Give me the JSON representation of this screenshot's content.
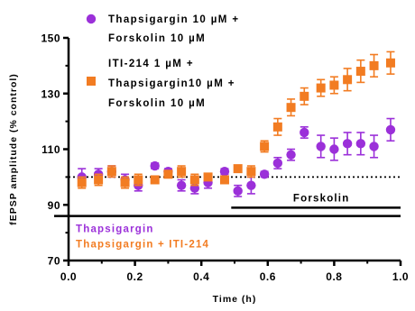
{
  "colors": {
    "purple": "#9B30D9",
    "orange": "#F27C22",
    "axis": "#000000"
  },
  "chart_data": {
    "type": "scatter",
    "xlabel": "Time (h)",
    "ylabel": "fEPSP amplitude (% control)",
    "xlim": [
      0.0,
      1.0
    ],
    "ylim": [
      70,
      150
    ],
    "xticks": [
      "0.0",
      "0.2",
      "0.4",
      "0.6",
      "0.8",
      "1.0"
    ],
    "yticks": [
      "70",
      "90",
      "110",
      "130",
      "150"
    ],
    "baseline": 100,
    "legend": [
      {
        "series": 0,
        "marker": "circle",
        "color": "#9B30D9",
        "lines": [
          "Thapsigargin 10 µM +",
          "Forskolin 10 µM"
        ]
      },
      {
        "series": 1,
        "marker": "square",
        "color": "#F27C22",
        "lines": [
          "ITI-214 1 µM +",
          "Thapsigargin10 µM +",
          "Forskolin 10 µM"
        ]
      }
    ],
    "annotations": {
      "forskolin": {
        "label": "Forskolin",
        "x_start": 0.49,
        "x_end": 1.0,
        "y": 89
      },
      "thapsigargin": {
        "label": "Thapsigargin",
        "label_color": "#9B30D9",
        "x_start": 0.0,
        "x_end": 1.0,
        "y": 86
      },
      "thapsigargin_iti": {
        "label": "Thapsigargin + ITI-214",
        "label_color": "#F27C22"
      }
    },
    "series": [
      {
        "marker": "circle",
        "color": "#9B30D9",
        "points": [
          {
            "x": 0.04,
            "y": 100,
            "err": 3
          },
          {
            "x": 0.09,
            "y": 101,
            "err": 2
          },
          {
            "x": 0.13,
            "y": 102,
            "err": 2
          },
          {
            "x": 0.17,
            "y": 99,
            "err": 2
          },
          {
            "x": 0.21,
            "y": 97,
            "err": 2
          },
          {
            "x": 0.26,
            "y": 104,
            "err": 1
          },
          {
            "x": 0.3,
            "y": 102,
            "err": 1
          },
          {
            "x": 0.34,
            "y": 97,
            "err": 2
          },
          {
            "x": 0.38,
            "y": 96,
            "err": 2
          },
          {
            "x": 0.42,
            "y": 98,
            "err": 2
          },
          {
            "x": 0.47,
            "y": 102,
            "err": 1
          },
          {
            "x": 0.51,
            "y": 95,
            "err": 2
          },
          {
            "x": 0.55,
            "y": 97,
            "err": 3
          },
          {
            "x": 0.59,
            "y": 101,
            "err": 1
          },
          {
            "x": 0.63,
            "y": 105,
            "err": 2
          },
          {
            "x": 0.67,
            "y": 108,
            "err": 2
          },
          {
            "x": 0.71,
            "y": 116,
            "err": 2
          },
          {
            "x": 0.76,
            "y": 111,
            "err": 4
          },
          {
            "x": 0.8,
            "y": 110,
            "err": 4
          },
          {
            "x": 0.84,
            "y": 112,
            "err": 4
          },
          {
            "x": 0.88,
            "y": 112,
            "err": 4
          },
          {
            "x": 0.92,
            "y": 111,
            "err": 4
          },
          {
            "x": 0.97,
            "y": 117,
            "err": 4
          }
        ]
      },
      {
        "marker": "square",
        "color": "#F27C22",
        "points": [
          {
            "x": 0.04,
            "y": 98,
            "err": 2
          },
          {
            "x": 0.09,
            "y": 99,
            "err": 2
          },
          {
            "x": 0.13,
            "y": 102,
            "err": 2
          },
          {
            "x": 0.17,
            "y": 98,
            "err": 2
          },
          {
            "x": 0.21,
            "y": 99,
            "err": 2
          },
          {
            "x": 0.26,
            "y": 99,
            "err": 1
          },
          {
            "x": 0.3,
            "y": 101,
            "err": 1
          },
          {
            "x": 0.34,
            "y": 102,
            "err": 2
          },
          {
            "x": 0.38,
            "y": 99,
            "err": 2
          },
          {
            "x": 0.42,
            "y": 100,
            "err": 1
          },
          {
            "x": 0.47,
            "y": 99,
            "err": 1
          },
          {
            "x": 0.51,
            "y": 103,
            "err": 1
          },
          {
            "x": 0.55,
            "y": 102,
            "err": 2
          },
          {
            "x": 0.59,
            "y": 111,
            "err": 2
          },
          {
            "x": 0.63,
            "y": 118,
            "err": 3
          },
          {
            "x": 0.67,
            "y": 125,
            "err": 3
          },
          {
            "x": 0.71,
            "y": 129,
            "err": 3
          },
          {
            "x": 0.76,
            "y": 132,
            "err": 3
          },
          {
            "x": 0.8,
            "y": 133,
            "err": 3
          },
          {
            "x": 0.84,
            "y": 135,
            "err": 4
          },
          {
            "x": 0.88,
            "y": 138,
            "err": 4
          },
          {
            "x": 0.92,
            "y": 140,
            "err": 4
          },
          {
            "x": 0.97,
            "y": 141,
            "err": 4
          }
        ]
      }
    ]
  }
}
